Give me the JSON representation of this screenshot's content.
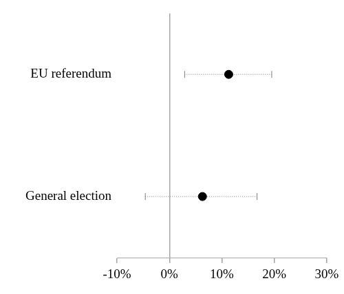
{
  "chart_data": {
    "type": "dot",
    "categories": [
      "EU referendum",
      "General election"
    ],
    "values": [
      11.3,
      6.3
    ],
    "error_low": [
      2.9,
      -4.6
    ],
    "error_high": [
      19.5,
      16.7
    ],
    "color": "#000000",
    "xlim": [
      -10,
      30
    ],
    "xticks": [
      {
        "value": -10,
        "label": "-10%"
      },
      {
        "value": 0,
        "label": "0%"
      },
      {
        "value": 10,
        "label": "10%"
      },
      {
        "value": 20,
        "label": "20%"
      },
      {
        "value": 30,
        "label": "30%"
      }
    ],
    "grid": false,
    "orientation": "horizontal",
    "marker": "circle",
    "line_style": "dotted"
  }
}
